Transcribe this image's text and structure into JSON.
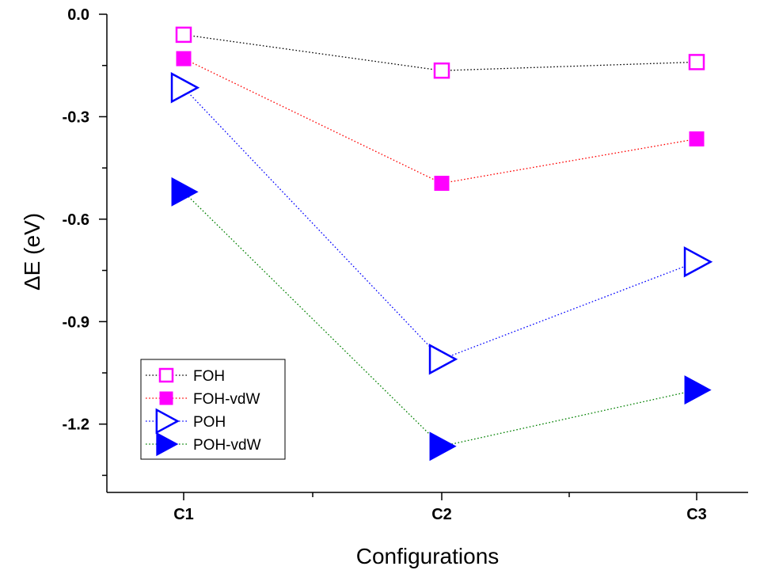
{
  "chart_data": {
    "type": "line",
    "title": "",
    "xlabel": "Configurations",
    "ylabel": "ΔE (eV)",
    "categories": [
      "C1",
      "C2",
      "C3"
    ],
    "ylim": [
      -1.4,
      0.0
    ],
    "yticks": [
      0.0,
      -0.3,
      -0.6,
      -0.9,
      -1.2
    ],
    "ytick_labels": [
      "0.0",
      "-0.3",
      "-0.6",
      "-0.9",
      "-1.2"
    ],
    "grid": false,
    "legend_position": "bottom-left",
    "series": [
      {
        "name": "FOH",
        "values": [
          -0.06,
          -0.165,
          -0.14
        ],
        "marker": "square-open",
        "marker_color": "#ff00ff",
        "line_color": "#000000"
      },
      {
        "name": "FOH-vdW",
        "values": [
          -0.13,
          -0.495,
          -0.365
        ],
        "marker": "square-filled",
        "marker_color": "#ff00ff",
        "line_color": "#ff0000"
      },
      {
        "name": "POH",
        "values": [
          -0.215,
          -1.01,
          -0.725
        ],
        "marker": "triangle-open",
        "marker_color": "#0000ff",
        "line_color": "#0000ff"
      },
      {
        "name": "POH-vdW",
        "values": [
          -0.52,
          -1.265,
          -1.1
        ],
        "marker": "triangle-filled",
        "marker_color": "#0000ff",
        "line_color": "#008000"
      }
    ]
  }
}
